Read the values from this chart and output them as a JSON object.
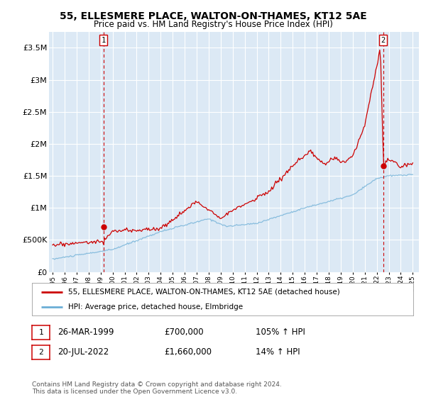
{
  "title": "55, ELLESMERE PLACE, WALTON-ON-THAMES, KT12 5AE",
  "subtitle": "Price paid vs. HM Land Registry's House Price Index (HPI)",
  "ylim": [
    0,
    3750000
  ],
  "yticks": [
    0,
    500000,
    1000000,
    1500000,
    2000000,
    2500000,
    3000000,
    3500000
  ],
  "ytick_labels": [
    "£0",
    "£500K",
    "£1M",
    "£1.5M",
    "£2M",
    "£2.5M",
    "£3M",
    "£3.5M"
  ],
  "plot_bg_color": "#dce9f5",
  "line1_color": "#cc0000",
  "line2_color": "#6baed6",
  "marker_color": "#cc0000",
  "sale1_x": 1999.23,
  "sale1_y": 700000,
  "sale2_x": 2022.54,
  "sale2_y": 1660000,
  "legend1": "55, ELLESMERE PLACE, WALTON-ON-THAMES, KT12 5AE (detached house)",
  "legend2": "HPI: Average price, detached house, Elmbridge",
  "note1_date": "26-MAR-1999",
  "note1_price": "£700,000",
  "note1_hpi": "105% ↑ HPI",
  "note2_date": "20-JUL-2022",
  "note2_price": "£1,660,000",
  "note2_hpi": "14% ↑ HPI",
  "footer": "Contains HM Land Registry data © Crown copyright and database right 2024.\nThis data is licensed under the Open Government Licence v3.0.",
  "xmin": 1994.7,
  "xmax": 2025.5
}
